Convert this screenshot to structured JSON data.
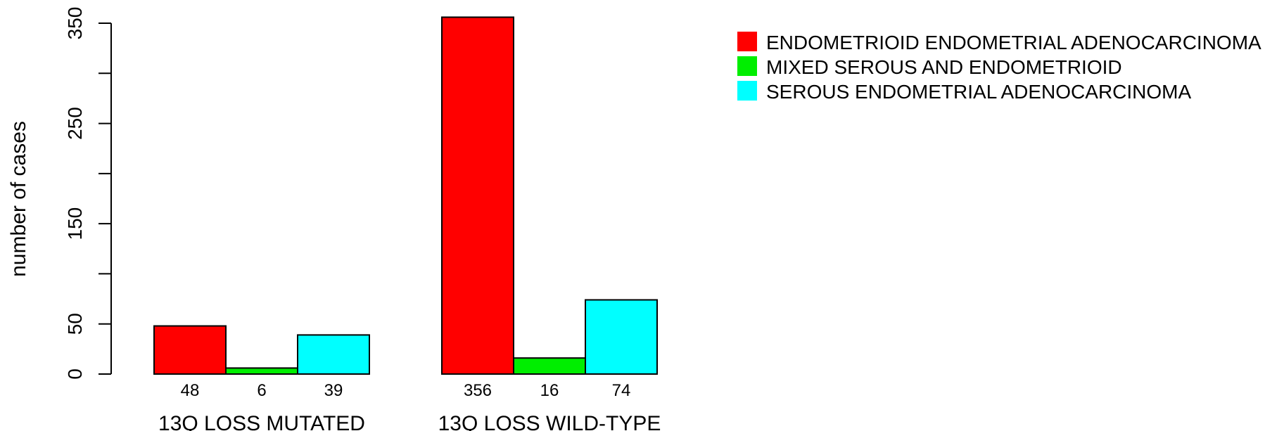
{
  "chart_data": {
    "type": "bar",
    "ylabel": "number of cases",
    "ylim": [
      0,
      350
    ],
    "yticks": [
      0,
      50,
      150,
      250,
      350
    ],
    "categories": [
      "13Q LOSS MUTATED",
      "13Q LOSS WILD-TYPE"
    ],
    "series": [
      {
        "name": "ENDOMETRIOID ENDOMETRIAL ADENOCARCINOMA",
        "color": "#ff0000",
        "values": [
          48,
          356
        ]
      },
      {
        "name": "MIXED SEROUS AND ENDOMETRIOID",
        "color": "#00ee00",
        "values": [
          6,
          16
        ]
      },
      {
        "name": "SEROUS ENDOMETRIAL ADENOCARCINOMA",
        "color": "#00ffff",
        "values": [
          39,
          74
        ]
      }
    ],
    "bar_labels": [
      [
        "48",
        "6",
        "39"
      ],
      [
        "356",
        "16",
        "74"
      ]
    ],
    "legend_position": "top-right",
    "grid": false
  }
}
